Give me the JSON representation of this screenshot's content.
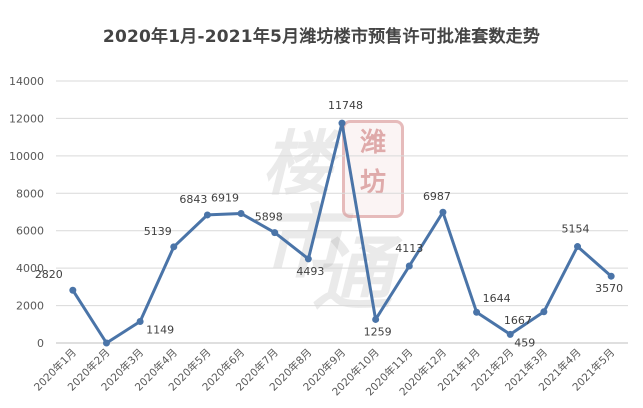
{
  "chart_data": {
    "type": "line",
    "title": "2020年1月-2021年5月潍坊楼市预售许可批准套数走势",
    "xlabel": "",
    "ylabel": "",
    "categories": [
      "2020年1月",
      "2020年2月",
      "2020年3月",
      "2020年4月",
      "2020年5月",
      "2020年6月",
      "2020年7月",
      "2020年8月",
      "2020年9月",
      "2020年10月",
      "2020年11月",
      "2020年12月",
      "2021年1月",
      "2021年2月",
      "2021年3月",
      "2021年4月",
      "2021年5月"
    ],
    "series": [
      {
        "values": [
          2820,
          0,
          1149,
          5139,
          6843,
          6919,
          5898,
          4493,
          11748,
          1259,
          4113,
          6987,
          1644,
          459,
          1667,
          5154,
          3570
        ]
      }
    ],
    "data_labels": [
      "2820",
      "",
      "1149",
      "5139",
      "6843",
      "6919",
      "5898",
      "4493",
      "11748",
      "1259",
      "4113",
      "6987",
      "1644",
      "459",
      "1667",
      "5154",
      "3570"
    ],
    "ylim": [
      0,
      14000
    ],
    "yticks": [
      "0",
      "2000",
      "4000",
      "6000",
      "8000",
      "10000",
      "12000",
      "14000"
    ],
    "grid": true,
    "legend": "none",
    "line_color": "#4a74a8",
    "marker_color": "#4a74a8"
  },
  "watermark": {
    "seal_chars": [
      "潍",
      "坊"
    ],
    "big_chars": [
      "楼",
      "市",
      "通"
    ]
  }
}
